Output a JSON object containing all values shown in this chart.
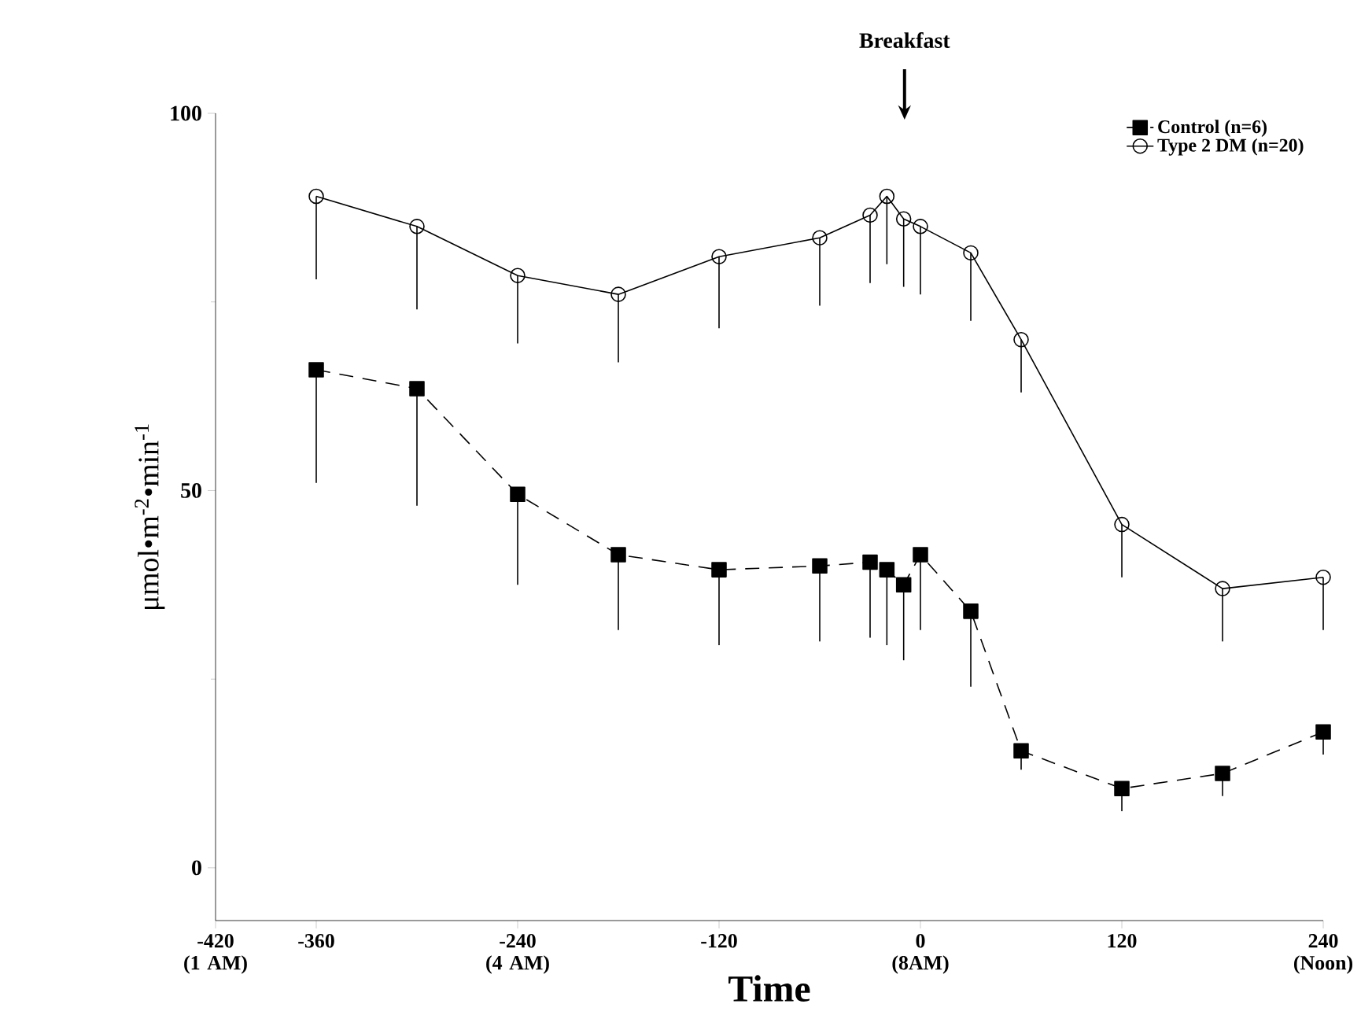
{
  "chart_data": {
    "type": "line",
    "xlabel": "Time",
    "ylabel": "μmol•m$^{-2}$•min$^{-1}$",
    "x": [
      -360,
      -300,
      -240,
      -180,
      -120,
      -60,
      -30,
      -20,
      -10,
      0,
      30,
      60,
      120,
      180,
      240
    ],
    "series": [
      {
        "name": "Control (n=6)",
        "color": "#000000",
        "marker": "square",
        "line_style": "dashed",
        "values": [
          66,
          63.5,
          49.5,
          41.5,
          39.5,
          40,
          40.5,
          39.5,
          37.5,
          41.5,
          34,
          15.5,
          10.5,
          12.5,
          18
        ],
        "errors": [
          [
            51,
            66
          ],
          [
            48,
            63.5
          ],
          [
            37.5,
            49.5
          ],
          [
            31.5,
            41.5
          ],
          [
            29.5,
            39.5
          ],
          [
            30,
            40
          ],
          [
            30.5,
            40.5
          ],
          [
            29.5,
            39.5
          ],
          [
            27.5,
            37.5
          ],
          [
            31.5,
            41.5
          ],
          [
            24,
            34
          ],
          [
            13,
            15.5
          ],
          [
            7.5,
            10.5
          ],
          [
            9.5,
            12.5
          ],
          [
            15,
            18
          ]
        ]
      },
      {
        "name": "Type 2 DM (n=20)",
        "color": "#000000",
        "marker": "circle",
        "line_style": "solid",
        "values": [
          89,
          85,
          78.5,
          76,
          81,
          83.5,
          86.5,
          89,
          86,
          85,
          81.5,
          70,
          45.5,
          37,
          38.5
        ],
        "errors": [
          [
            78,
            89
          ],
          [
            74,
            85
          ],
          [
            69.5,
            78.5
          ],
          [
            67,
            76
          ],
          [
            71.5,
            81
          ],
          [
            74.5,
            83.5
          ],
          [
            77.5,
            86.5
          ],
          [
            80,
            89
          ],
          [
            77,
            86
          ],
          [
            76,
            85
          ],
          [
            72.5,
            81.5
          ],
          [
            63,
            70
          ],
          [
            38.5,
            45.5
          ],
          [
            30,
            37
          ],
          [
            31.5,
            38.5
          ]
        ]
      }
    ],
    "xlim": [
      -420,
      240
    ],
    "xticks": [
      {
        "value": -420,
        "label": "-420 (1 AM)"
      },
      -360,
      {
        "value": -240,
        "label": "-240 (4 AM)"
      },
      -120,
      {
        "value": 0,
        "label": "0 (8AM)"
      },
      120,
      {
        "value": 240,
        "label": "240 (Noon)"
      }
    ],
    "ylim": [
      -7,
      100
    ],
    "yticks": [
      0,
      50,
      100
    ],
    "annotations": [
      "Breakfast"
    ],
    "grid": false,
    "legend": "top right"
  }
}
